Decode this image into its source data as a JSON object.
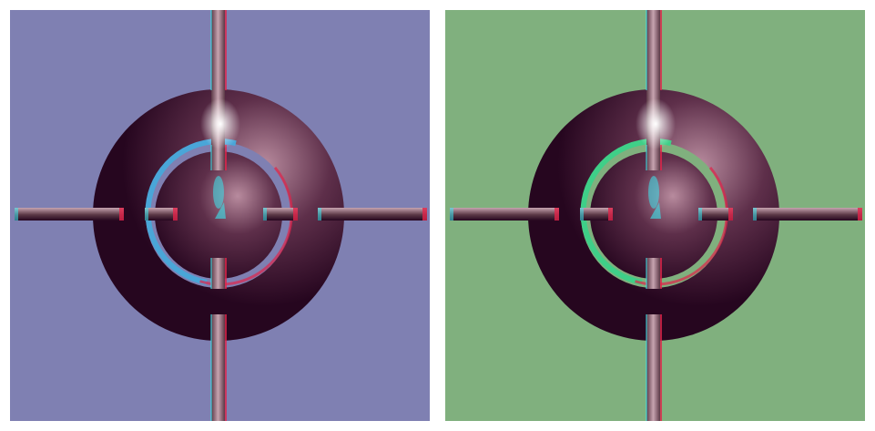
{
  "panels": [
    {
      "id": "left",
      "background": "#7f80b2",
      "ring_accent": "#4aa6d8"
    },
    {
      "id": "right",
      "background": "#80b07e",
      "ring_accent": "#3fcf88"
    }
  ],
  "colors": {
    "disc_dark": "#26061f",
    "disc_mid": "#5e2f4a",
    "disc_light": "#b88b9e",
    "highlight": "#ffffff",
    "rod_dark": "#5b3846",
    "rod_light": "#c7a4b0",
    "anaglyph_red": "#e0244a",
    "anaglyph_cyan": "#3ae6ee"
  }
}
